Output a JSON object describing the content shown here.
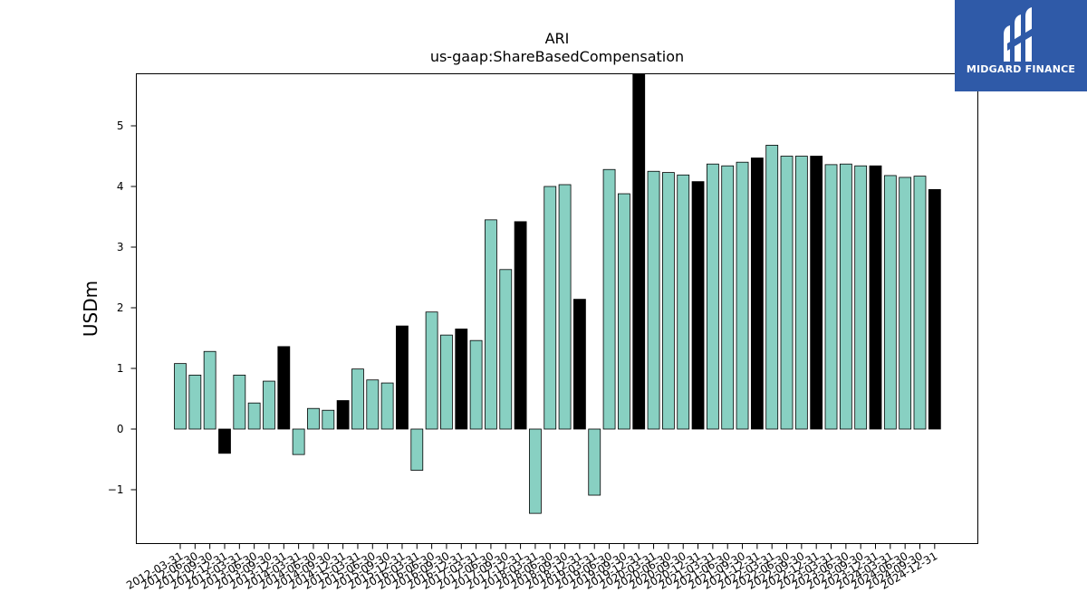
{
  "brand": {
    "name": "MIDGARD FINANCE",
    "bg_color": "#2f5aa8",
    "mark_color": "#ffffff"
  },
  "chart_data": {
    "type": "bar",
    "title": "ARI",
    "subtitle": "us-gaap:ShareBasedCompensation",
    "xlabel": "",
    "ylabel": "USDm",
    "ylim": [
      -1.9,
      5.85
    ],
    "yticks": [
      -1,
      0,
      1,
      2,
      3,
      4,
      5
    ],
    "ytick_labels": [
      "−1",
      "0",
      "1",
      "2",
      "3",
      "4",
      "5"
    ],
    "grid": false,
    "colors": {
      "quarter": "#88d0c2",
      "year_end": "#000000",
      "edge": "#000000"
    },
    "categories": [
      "2012-03-31",
      "2012-06-30",
      "2012-09-30",
      "2012-12-31",
      "2013-03-31",
      "2013-06-30",
      "2013-09-30",
      "2013-12-31",
      "2014-03-31",
      "2014-06-30",
      "2014-09-30",
      "2014-12-31",
      "2015-03-31",
      "2015-06-30",
      "2015-09-30",
      "2015-12-31",
      "2016-03-31",
      "2016-06-30",
      "2016-09-30",
      "2016-12-31",
      "2017-03-31",
      "2017-06-30",
      "2017-09-30",
      "2017-12-31",
      "2018-03-31",
      "2018-06-30",
      "2018-09-30",
      "2018-12-31",
      "2019-03-31",
      "2019-06-30",
      "2019-09-30",
      "2019-12-31",
      "2020-03-31",
      "2020-06-30",
      "2020-09-30",
      "2020-12-31",
      "2021-03-31",
      "2021-06-30",
      "2021-09-30",
      "2021-12-31",
      "2022-03-31",
      "2022-06-30",
      "2022-09-30",
      "2022-12-31",
      "2023-03-31",
      "2023-06-30",
      "2023-09-30",
      "2023-12-31",
      "2024-03-31",
      "2024-06-30",
      "2024-09-30",
      "2024-12-31"
    ],
    "values": [
      1.08,
      0.89,
      1.28,
      -0.4,
      0.89,
      0.43,
      0.79,
      1.36,
      -0.42,
      0.34,
      0.31,
      0.47,
      0.99,
      0.81,
      0.76,
      1.7,
      -0.68,
      1.93,
      1.55,
      1.65,
      1.46,
      3.45,
      2.63,
      3.42,
      -1.39,
      4.0,
      4.03,
      2.14,
      -1.09,
      4.28,
      3.88,
      5.85,
      4.25,
      4.23,
      4.19,
      4.08,
      4.37,
      4.34,
      4.4,
      4.47,
      4.68,
      4.5,
      4.5,
      4.5,
      4.36,
      4.37,
      4.34,
      4.34,
      4.18,
      4.15,
      4.17,
      3.95
    ]
  }
}
